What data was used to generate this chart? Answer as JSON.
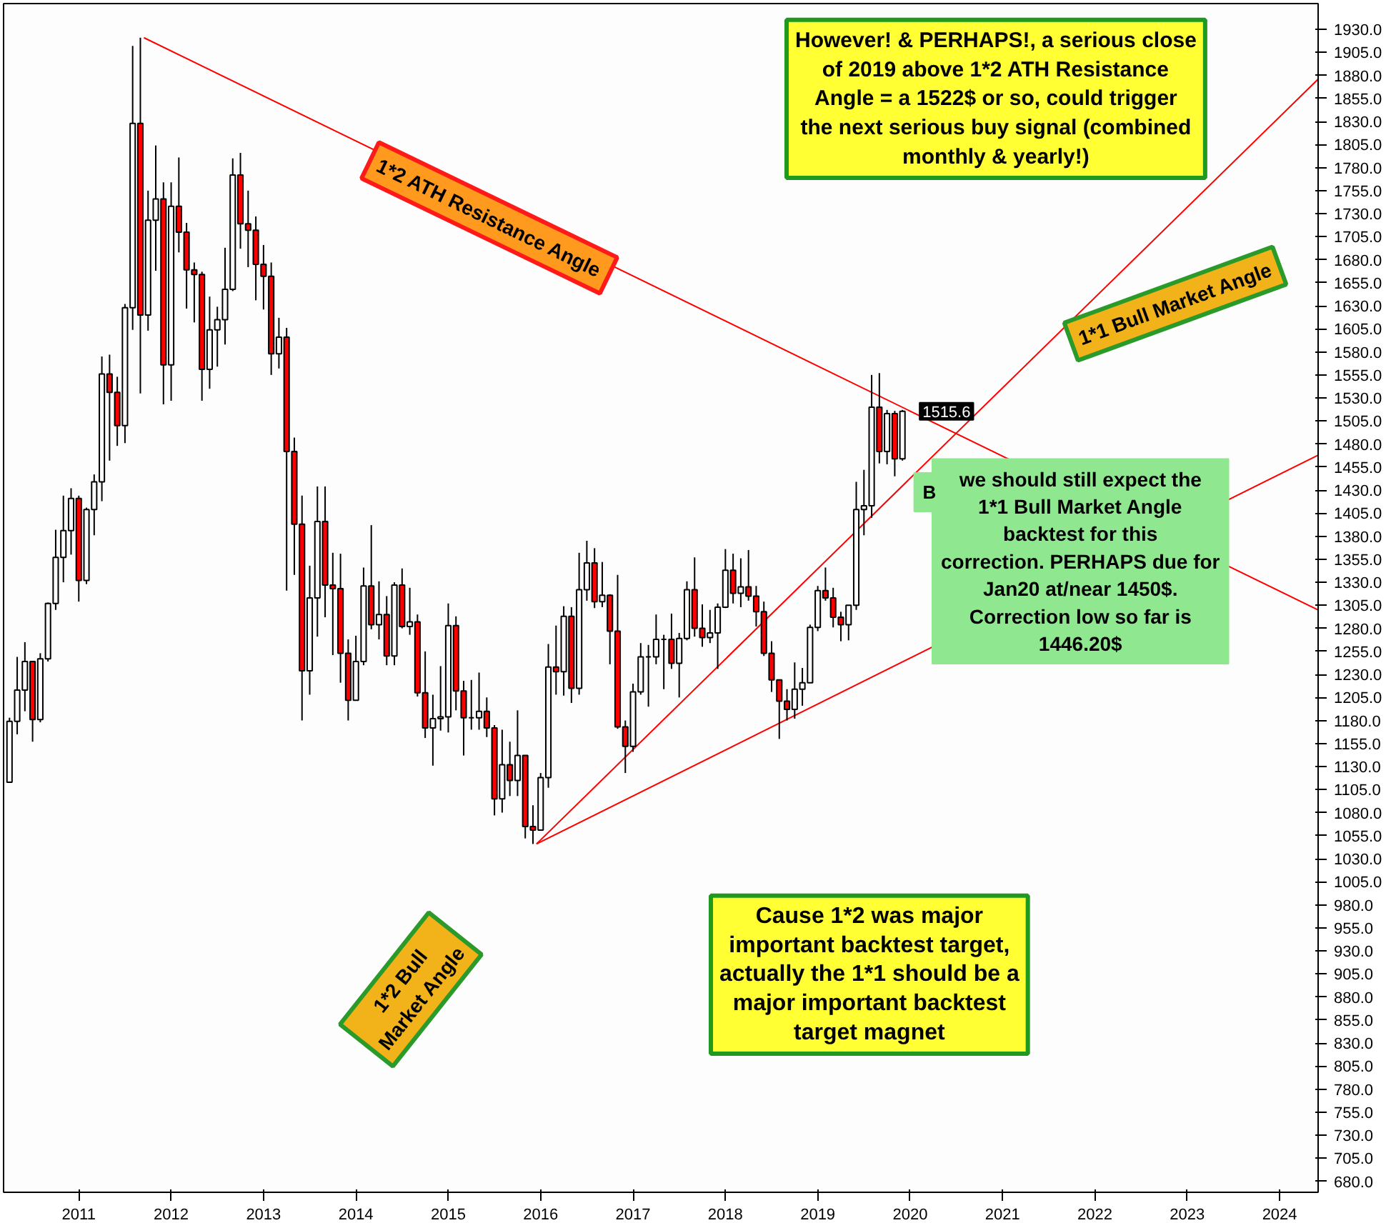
{
  "chart_data": {
    "type": "candlestick",
    "colors": [
      "#ffffff",
      "#ffffff",
      "#ffffff",
      "#ff0000",
      "#ffffff",
      "#ffffff",
      "#ffffff",
      "#ffffff",
      "#ffffff",
      "#ff0000",
      "#ffffff",
      "#ffffff",
      "#ffffff",
      "#ff0000",
      "#ff0000",
      "#ffffff",
      "#ffffff",
      "#ff0000",
      "#ffffff",
      "#ffffff",
      "#ff0000",
      "#ffffff",
      "#ff0000",
      "#ff0000",
      "#ff0000",
      "#ff0000",
      "#ffffff",
      "#ffffff",
      "#ffffff",
      "#ffffff",
      "#ff0000",
      "#ff0000",
      "#ff0000",
      "#ff0000",
      "#ff0000",
      "#ffffff",
      "#ff0000",
      "#ff0000",
      "#ff0000",
      "#ffffff",
      "#ffffff",
      "#ff0000",
      "#ff0000",
      "#ff0000",
      "#ff0000",
      "#ffffff",
      "#ffffff",
      "#ff0000",
      "#ffffff",
      "#ff0000",
      "#ffffff",
      "#ff0000",
      "#ffffff",
      "#ff0000",
      "#ff0000",
      "#ffffff",
      "#ffffff",
      "#ffffff",
      "#ff0000",
      "#ff0000",
      "#000000",
      "#ffffff",
      "#ff0000",
      "#ff0000",
      "#ffffff",
      "#ff0000",
      "#ffffff",
      "#ff0000",
      "#ff0000",
      "#ffffff",
      "#ffffff",
      "#ff0000",
      "#ffffff",
      "#ff0000",
      "#ffffff",
      "#ffffff",
      "#ff0000",
      "#ffffff",
      "#ff0000",
      "#ff0000",
      "#ff0000",
      "#ffffff",
      "#ffffff",
      "#000000",
      "#ffffff",
      "#000000",
      "#ff0000",
      "#ffffff",
      "#ffffff",
      "#ff0000",
      "#ff0000",
      "#ffffff",
      "#ffffff",
      "#ffffff",
      "#ff0000",
      "#ffffff",
      "#ff0000",
      "#ff0000",
      "#ff0000",
      "#ff0000",
      "#ff0000",
      "#ff0000",
      "#ffffff",
      "#ffffff",
      "#ffffff",
      "#ffffff",
      "#ff0000",
      "#ff0000",
      "#ff0000",
      "#ffffff",
      "#ffffff",
      "#ffffff",
      "#ffffff",
      "#ff0000",
      "#ffffff",
      "#ff0000",
      "#ffffff"
    ],
    "x": [
      "2010-04",
      "2010-05",
      "2010-06",
      "2010-07",
      "2010-08",
      "2010-09",
      "2010-10",
      "2010-11",
      "2010-12",
      "2011-01",
      "2011-02",
      "2011-03",
      "2011-04",
      "2011-05",
      "2011-06",
      "2011-07",
      "2011-08",
      "2011-09",
      "2011-10",
      "2011-11",
      "2011-12",
      "2012-01",
      "2012-02",
      "2012-03",
      "2012-04",
      "2012-05",
      "2012-06",
      "2012-07",
      "2012-08",
      "2012-09",
      "2012-10",
      "2012-11",
      "2012-12",
      "2013-01",
      "2013-02",
      "2013-03",
      "2013-04",
      "2013-05",
      "2013-06",
      "2013-07",
      "2013-08",
      "2013-09",
      "2013-10",
      "2013-11",
      "2013-12",
      "2014-01",
      "2014-02",
      "2014-03",
      "2014-04",
      "2014-05",
      "2014-06",
      "2014-07",
      "2014-08",
      "2014-09",
      "2014-10",
      "2014-11",
      "2014-12",
      "2015-01",
      "2015-02",
      "2015-03",
      "2015-04",
      "2015-05",
      "2015-06",
      "2015-07",
      "2015-08",
      "2015-09",
      "2015-10",
      "2015-11",
      "2015-12",
      "2016-01",
      "2016-02",
      "2016-03",
      "2016-04",
      "2016-05",
      "2016-06",
      "2016-07",
      "2016-08",
      "2016-09",
      "2016-10",
      "2016-11",
      "2016-12",
      "2017-01",
      "2017-02",
      "2017-03",
      "2017-04",
      "2017-05",
      "2017-06",
      "2017-07",
      "2017-08",
      "2017-09",
      "2017-10",
      "2017-11",
      "2017-12",
      "2018-01",
      "2018-02",
      "2018-03",
      "2018-04",
      "2018-05",
      "2018-06",
      "2018-07",
      "2018-08",
      "2018-09",
      "2018-10",
      "2018-11",
      "2018-12",
      "2019-01",
      "2019-02",
      "2019-03",
      "2019-04",
      "2019-05",
      "2019-06",
      "2019-07",
      "2019-08",
      "2019-09",
      "2019-10",
      "2019-11",
      "2019-12"
    ],
    "ohlc": [
      [
        1113,
        1183,
        1113,
        1179
      ],
      [
        1179,
        1249,
        1165,
        1213
      ],
      [
        1213,
        1265,
        1190,
        1244
      ],
      [
        1244,
        1244,
        1157,
        1181
      ],
      [
        1181,
        1253,
        1178,
        1247
      ],
      [
        1247,
        1308,
        1244,
        1307
      ],
      [
        1307,
        1387,
        1300,
        1357
      ],
      [
        1357,
        1424,
        1330,
        1386
      ],
      [
        1386,
        1432,
        1360,
        1421
      ],
      [
        1421,
        1424,
        1309,
        1332
      ],
      [
        1332,
        1411,
        1328,
        1409
      ],
      [
        1409,
        1447,
        1381,
        1439
      ],
      [
        1439,
        1575,
        1418,
        1556
      ],
      [
        1556,
        1577,
        1462,
        1536
      ],
      [
        1536,
        1553,
        1478,
        1500
      ],
      [
        1500,
        1632,
        1481,
        1628
      ],
      [
        1628,
        1912,
        1604,
        1828
      ],
      [
        1828,
        1921,
        1535,
        1620
      ],
      [
        1620,
        1755,
        1603,
        1723
      ],
      [
        1723,
        1804,
        1668,
        1746
      ],
      [
        1746,
        1764,
        1523,
        1566
      ],
      [
        1566,
        1764,
        1527,
        1738
      ],
      [
        1738,
        1791,
        1688,
        1710
      ],
      [
        1710,
        1720,
        1627,
        1669
      ],
      [
        1669,
        1677,
        1612,
        1664
      ],
      [
        1664,
        1667,
        1527,
        1561
      ],
      [
        1561,
        1640,
        1540,
        1604
      ],
      [
        1604,
        1629,
        1564,
        1615
      ],
      [
        1615,
        1693,
        1588,
        1648
      ],
      [
        1648,
        1790,
        1646,
        1772
      ],
      [
        1772,
        1796,
        1692,
        1719
      ],
      [
        1719,
        1755,
        1672,
        1712
      ],
      [
        1712,
        1727,
        1636,
        1675
      ],
      [
        1675,
        1696,
        1626,
        1662
      ],
      [
        1662,
        1677,
        1555,
        1578
      ],
      [
        1578,
        1617,
        1562,
        1596
      ],
      [
        1596,
        1606,
        1321,
        1472
      ],
      [
        1472,
        1487,
        1338,
        1393
      ],
      [
        1393,
        1424,
        1180,
        1234
      ],
      [
        1234,
        1348,
        1208,
        1313
      ],
      [
        1313,
        1434,
        1271,
        1396
      ],
      [
        1396,
        1434,
        1292,
        1327
      ],
      [
        1327,
        1362,
        1251,
        1323
      ],
      [
        1323,
        1361,
        1221,
        1253
      ],
      [
        1253,
        1268,
        1180,
        1202
      ],
      [
        1202,
        1272,
        1202,
        1244
      ],
      [
        1244,
        1346,
        1240,
        1326
      ],
      [
        1326,
        1392,
        1279,
        1284
      ],
      [
        1284,
        1331,
        1268,
        1295
      ],
      [
        1295,
        1315,
        1240,
        1250
      ],
      [
        1250,
        1330,
        1240,
        1327
      ],
      [
        1327,
        1345,
        1280,
        1282
      ],
      [
        1282,
        1324,
        1273,
        1287
      ],
      [
        1287,
        1295,
        1206,
        1210
      ],
      [
        1210,
        1255,
        1161,
        1172
      ],
      [
        1172,
        1208,
        1131,
        1182
      ],
      [
        1182,
        1239,
        1169,
        1184
      ],
      [
        1184,
        1307,
        1167,
        1283
      ],
      [
        1283,
        1293,
        1191,
        1212
      ],
      [
        1212,
        1223,
        1142,
        1183
      ],
      [
        1183,
        1224,
        1170,
        1183
      ],
      [
        1183,
        1232,
        1170,
        1190
      ],
      [
        1190,
        1205,
        1162,
        1172
      ],
      [
        1172,
        1175,
        1077,
        1095
      ],
      [
        1095,
        1170,
        1080,
        1132
      ],
      [
        1132,
        1157,
        1098,
        1115
      ],
      [
        1115,
        1191,
        1098,
        1142
      ],
      [
        1142,
        1142,
        1052,
        1065
      ],
      [
        1065,
        1088,
        1046,
        1061
      ],
      [
        1061,
        1123,
        1061,
        1118
      ],
      [
        1118,
        1263,
        1107,
        1238
      ],
      [
        1238,
        1283,
        1208,
        1233
      ],
      [
        1233,
        1304,
        1207,
        1293
      ],
      [
        1293,
        1303,
        1199,
        1215
      ],
      [
        1215,
        1362,
        1208,
        1322
      ],
      [
        1322,
        1375,
        1310,
        1351
      ],
      [
        1351,
        1367,
        1302,
        1309
      ],
      [
        1309,
        1352,
        1303,
        1316
      ],
      [
        1316,
        1317,
        1241,
        1277
      ],
      [
        1277,
        1338,
        1171,
        1173
      ],
      [
        1173,
        1180,
        1123,
        1152
      ],
      [
        1152,
        1220,
        1146,
        1211
      ],
      [
        1211,
        1264,
        1208,
        1249
      ],
      [
        1249,
        1262,
        1195,
        1249
      ],
      [
        1249,
        1295,
        1241,
        1268
      ],
      [
        1268,
        1273,
        1214,
        1268
      ],
      [
        1268,
        1296,
        1236,
        1242
      ],
      [
        1242,
        1275,
        1205,
        1269
      ],
      [
        1269,
        1331,
        1267,
        1322
      ],
      [
        1322,
        1357,
        1271,
        1280
      ],
      [
        1280,
        1306,
        1260,
        1270
      ],
      [
        1270,
        1300,
        1264,
        1275
      ],
      [
        1275,
        1307,
        1236,
        1303
      ],
      [
        1303,
        1366,
        1302,
        1343
      ],
      [
        1343,
        1361,
        1307,
        1318
      ],
      [
        1318,
        1356,
        1303,
        1325
      ],
      [
        1325,
        1365,
        1310,
        1315
      ],
      [
        1315,
        1326,
        1282,
        1298
      ],
      [
        1298,
        1309,
        1250,
        1253
      ],
      [
        1253,
        1266,
        1211,
        1224
      ],
      [
        1224,
        1224,
        1160,
        1201
      ],
      [
        1201,
        1214,
        1180,
        1192
      ],
      [
        1192,
        1243,
        1182,
        1214
      ],
      [
        1214,
        1237,
        1196,
        1221
      ],
      [
        1221,
        1284,
        1221,
        1281
      ],
      [
        1281,
        1326,
        1277,
        1321
      ],
      [
        1321,
        1346,
        1310,
        1313
      ],
      [
        1313,
        1324,
        1281,
        1292
      ],
      [
        1292,
        1298,
        1266,
        1284
      ],
      [
        1284,
        1305,
        1267,
        1305
      ],
      [
        1305,
        1439,
        1300,
        1409
      ],
      [
        1409,
        1452,
        1381,
        1413
      ],
      [
        1413,
        1555,
        1400,
        1520
      ],
      [
        1520,
        1557,
        1459,
        1472
      ],
      [
        1472,
        1517,
        1458,
        1513
      ],
      [
        1513,
        1516,
        1445,
        1464
      ],
      [
        1464,
        1517,
        1462,
        1515.6
      ]
    ],
    "series": [
      {
        "type": "line",
        "color": "#ff0000",
        "x": [
          "2011-09-15",
          "2024-06-01"
        ],
        "values": [
          1921,
          1300
        ]
      },
      {
        "type": "line",
        "color": "#ff0000",
        "x": [
          "2015-12-15",
          "2024-06-01"
        ],
        "values": [
          1046,
          1876
        ]
      },
      {
        "type": "line",
        "color": "#ff0000",
        "x": [
          "2015-12-15",
          "2024-06-01"
        ],
        "values": [
          1046,
          1468
        ]
      }
    ],
    "annotations": [
      "However! & PERHAPS!, a serious close of 2019 above 1*2 ATH Resistance Angle = a 1522$ or so, could trigger the next serious buy signal (combined monthly & yearly!)",
      "1*2 ATH Resistance Angle",
      "1*1 Bull Market Angle",
      "1*2 Bull Market Angle",
      "we should still expect the 1*1 Bull Market Angle backtest for this correction. PERHAPS due for Jan20 at/near 1450$. Correction low so far is 1446.20$",
      "Cause 1*2 was major important backtest target, actually the 1*1 should be a major important backtest target magnet",
      "B",
      {
        "text": "1515.6",
        "x": "2019-12",
        "y": 1515.6
      }
    ],
    "xlim": [
      "2010-03-08",
      "2024-06-01"
    ],
    "ylim": [
      668,
      1958
    ],
    "xticks": [
      {
        "value": "2011",
        "label": "2011"
      },
      {
        "value": "2012",
        "label": "2012"
      },
      {
        "value": "2013",
        "label": "2013"
      },
      {
        "value": "2014",
        "label": "2014"
      },
      {
        "value": "2015",
        "label": "2015"
      },
      {
        "value": "2016",
        "label": "2016"
      },
      {
        "value": "2017",
        "label": "2017"
      },
      {
        "value": "2018",
        "label": "2018"
      },
      {
        "value": "2019",
        "label": "2019"
      },
      {
        "value": "2020",
        "label": "2020"
      },
      {
        "value": "2021",
        "label": "2021"
      },
      {
        "value": "2022",
        "label": "2022"
      },
      {
        "value": "2023",
        "label": "2023"
      },
      {
        "value": "2024",
        "label": "2024"
      }
    ],
    "yticks": [
      {
        "value": 680,
        "label": "680.0"
      },
      {
        "value": 705,
        "label": "705.0"
      },
      {
        "value": 730,
        "label": "730.0"
      },
      {
        "value": 755,
        "label": "755.0"
      },
      {
        "value": 780,
        "label": "780.0"
      },
      {
        "value": 805,
        "label": "805.0"
      },
      {
        "value": 830,
        "label": "830.0"
      },
      {
        "value": 855,
        "label": "855.0"
      },
      {
        "value": 880,
        "label": "880.0"
      },
      {
        "value": 905,
        "label": "905.0"
      },
      {
        "value": 930,
        "label": "930.0"
      },
      {
        "value": 955,
        "label": "955.0"
      },
      {
        "value": 980,
        "label": "980.0"
      },
      {
        "value": 1005,
        "label": "1005.0"
      },
      {
        "value": 1030,
        "label": "1030.0"
      },
      {
        "value": 1055,
        "label": "1055.0"
      },
      {
        "value": 1080,
        "label": "1080.0"
      },
      {
        "value": 1105,
        "label": "1105.0"
      },
      {
        "value": 1130,
        "label": "1130.0"
      },
      {
        "value": 1155,
        "label": "1155.0"
      },
      {
        "value": 1180,
        "label": "1180.0"
      },
      {
        "value": 1205,
        "label": "1205.0"
      },
      {
        "value": 1230,
        "label": "1230.0"
      },
      {
        "value": 1255,
        "label": "1255.0"
      },
      {
        "value": 1280,
        "label": "1280.0"
      },
      {
        "value": 1305,
        "label": "1305.0"
      },
      {
        "value": 1330,
        "label": "1330.0"
      },
      {
        "value": 1355,
        "label": "1355.0"
      },
      {
        "value": 1380,
        "label": "1380.0"
      },
      {
        "value": 1405,
        "label": "1405.0"
      },
      {
        "value": 1430,
        "label": "1430.0"
      },
      {
        "value": 1455,
        "label": "1455.0"
      },
      {
        "value": 1480,
        "label": "1480.0"
      },
      {
        "value": 1505,
        "label": "1505.0"
      },
      {
        "value": 1530,
        "label": "1530.0"
      },
      {
        "value": 1555,
        "label": "1555.0"
      },
      {
        "value": 1580,
        "label": "1580.0"
      },
      {
        "value": 1605,
        "label": "1605.0"
      },
      {
        "value": 1630,
        "label": "1630.0"
      },
      {
        "value": 1655,
        "label": "1655.0"
      },
      {
        "value": 1680,
        "label": "1680.0"
      },
      {
        "value": 1705,
        "label": "1705.0"
      },
      {
        "value": 1730,
        "label": "1730.0"
      },
      {
        "value": 1755,
        "label": "1755.0"
      },
      {
        "value": 1780,
        "label": "1780.0"
      },
      {
        "value": 1805,
        "label": "1805.0"
      },
      {
        "value": 1830,
        "label": "1830.0"
      },
      {
        "value": 1855,
        "label": "1855.0"
      },
      {
        "value": 1880,
        "label": "1880.0"
      },
      {
        "value": 1905,
        "label": "1905.0"
      },
      {
        "value": 1930,
        "label": "1930.0"
      }
    ]
  }
}
